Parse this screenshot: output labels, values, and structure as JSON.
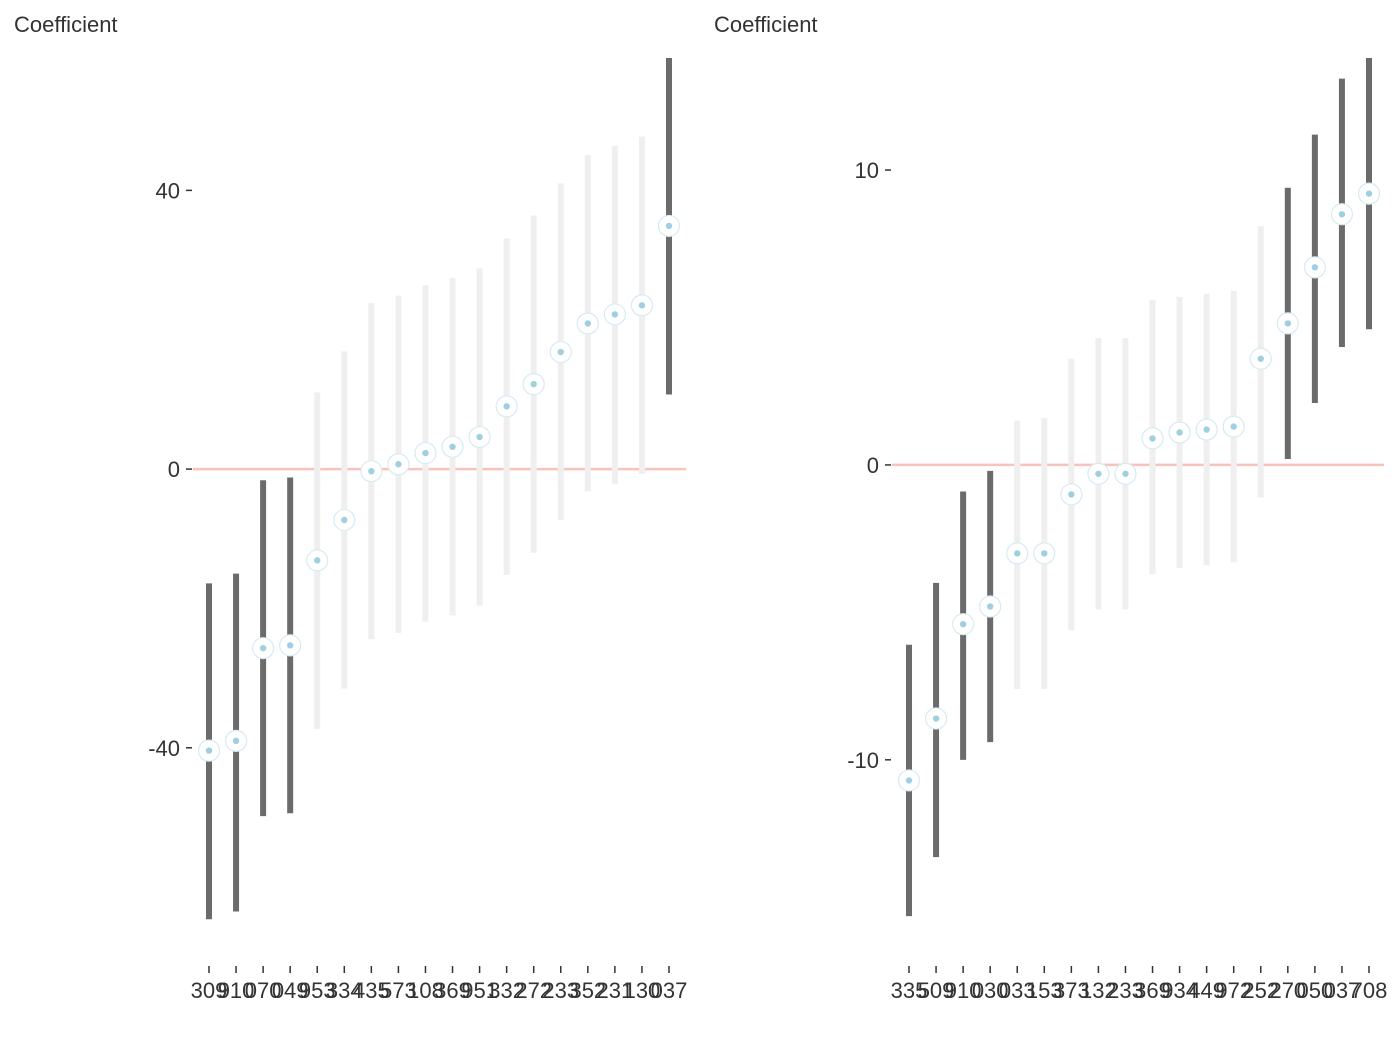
{
  "chart_data": [
    {
      "type": "scatter",
      "title": "",
      "xlabel": "",
      "ylabel": "Coefficient",
      "ylim": [
        -65,
        59
      ],
      "yticks": [
        -40,
        0,
        40
      ],
      "reference_line": 0,
      "colors": {
        "point": "#9fcfe0",
        "point_ring": "#ffffff",
        "point_ring_stroke": "#d6ebf2",
        "significant_bar": "#6b6b6b",
        "nonsignificant_bar": "#efefef",
        "reference_line": "#f8c3bc",
        "axis_tick": "#333333"
      },
      "categories": [
        "309",
        "910",
        "070",
        "049",
        "953",
        "334",
        "435",
        "573",
        "108",
        "369",
        "951",
        "332",
        "272",
        "233",
        "352",
        "231",
        "130",
        "037"
      ],
      "estimate": [
        -40.4,
        -39.0,
        -25.7,
        -25.3,
        -13.1,
        -7.3,
        -0.3,
        0.7,
        2.3,
        3.2,
        4.6,
        9.0,
        12.2,
        16.8,
        20.9,
        22.2,
        23.5,
        34.9
      ],
      "lower": [
        -64.6,
        -63.5,
        -49.8,
        -49.4,
        -37.3,
        -31.5,
        -24.4,
        -23.5,
        -21.9,
        -21.0,
        -19.6,
        -15.2,
        -12.0,
        -7.3,
        -3.2,
        -2.1,
        -0.7,
        10.7
      ],
      "upper": [
        -16.4,
        -15.0,
        -1.6,
        -1.2,
        11.0,
        16.9,
        23.8,
        24.9,
        26.4,
        27.4,
        28.8,
        33.1,
        36.4,
        41.0,
        45.1,
        46.4,
        47.7,
        59.0
      ]
    },
    {
      "type": "scatter",
      "title": "",
      "xlabel": "",
      "ylabel": "Coefficient",
      "ylim": [
        -15.5,
        13.8
      ],
      "yticks": [
        -10,
        0,
        10
      ],
      "reference_line": 0,
      "colors": {
        "point": "#9fcfe0",
        "point_ring": "#ffffff",
        "point_ring_stroke": "#d6ebf2",
        "significant_bar": "#6b6b6b",
        "nonsignificant_bar": "#efefef",
        "reference_line": "#f8c3bc",
        "axis_tick": "#333333"
      },
      "categories": [
        "335",
        "509",
        "910",
        "030",
        "033",
        "153",
        "373",
        "132",
        "233",
        "369",
        "934",
        "449",
        "972",
        "252",
        "270",
        "050",
        "037",
        "708"
      ],
      "estimate": [
        -10.7,
        -8.6,
        -5.4,
        -4.8,
        -3.0,
        -3.0,
        -1.0,
        -0.3,
        -0.3,
        0.9,
        1.1,
        1.2,
        1.3,
        3.6,
        4.8,
        6.7,
        8.5,
        9.2
      ],
      "lower": [
        -15.3,
        -13.3,
        -10.0,
        -9.4,
        -7.6,
        -7.6,
        -5.6,
        -4.9,
        -4.9,
        -3.7,
        -3.5,
        -3.4,
        -3.3,
        -1.1,
        0.2,
        2.1,
        4.0,
        4.6
      ],
      "upper": [
        -6.1,
        -4.0,
        -0.9,
        -0.2,
        1.5,
        1.6,
        3.6,
        4.3,
        4.3,
        5.6,
        5.7,
        5.8,
        5.9,
        8.1,
        9.4,
        11.2,
        13.1,
        13.8
      ]
    }
  ]
}
